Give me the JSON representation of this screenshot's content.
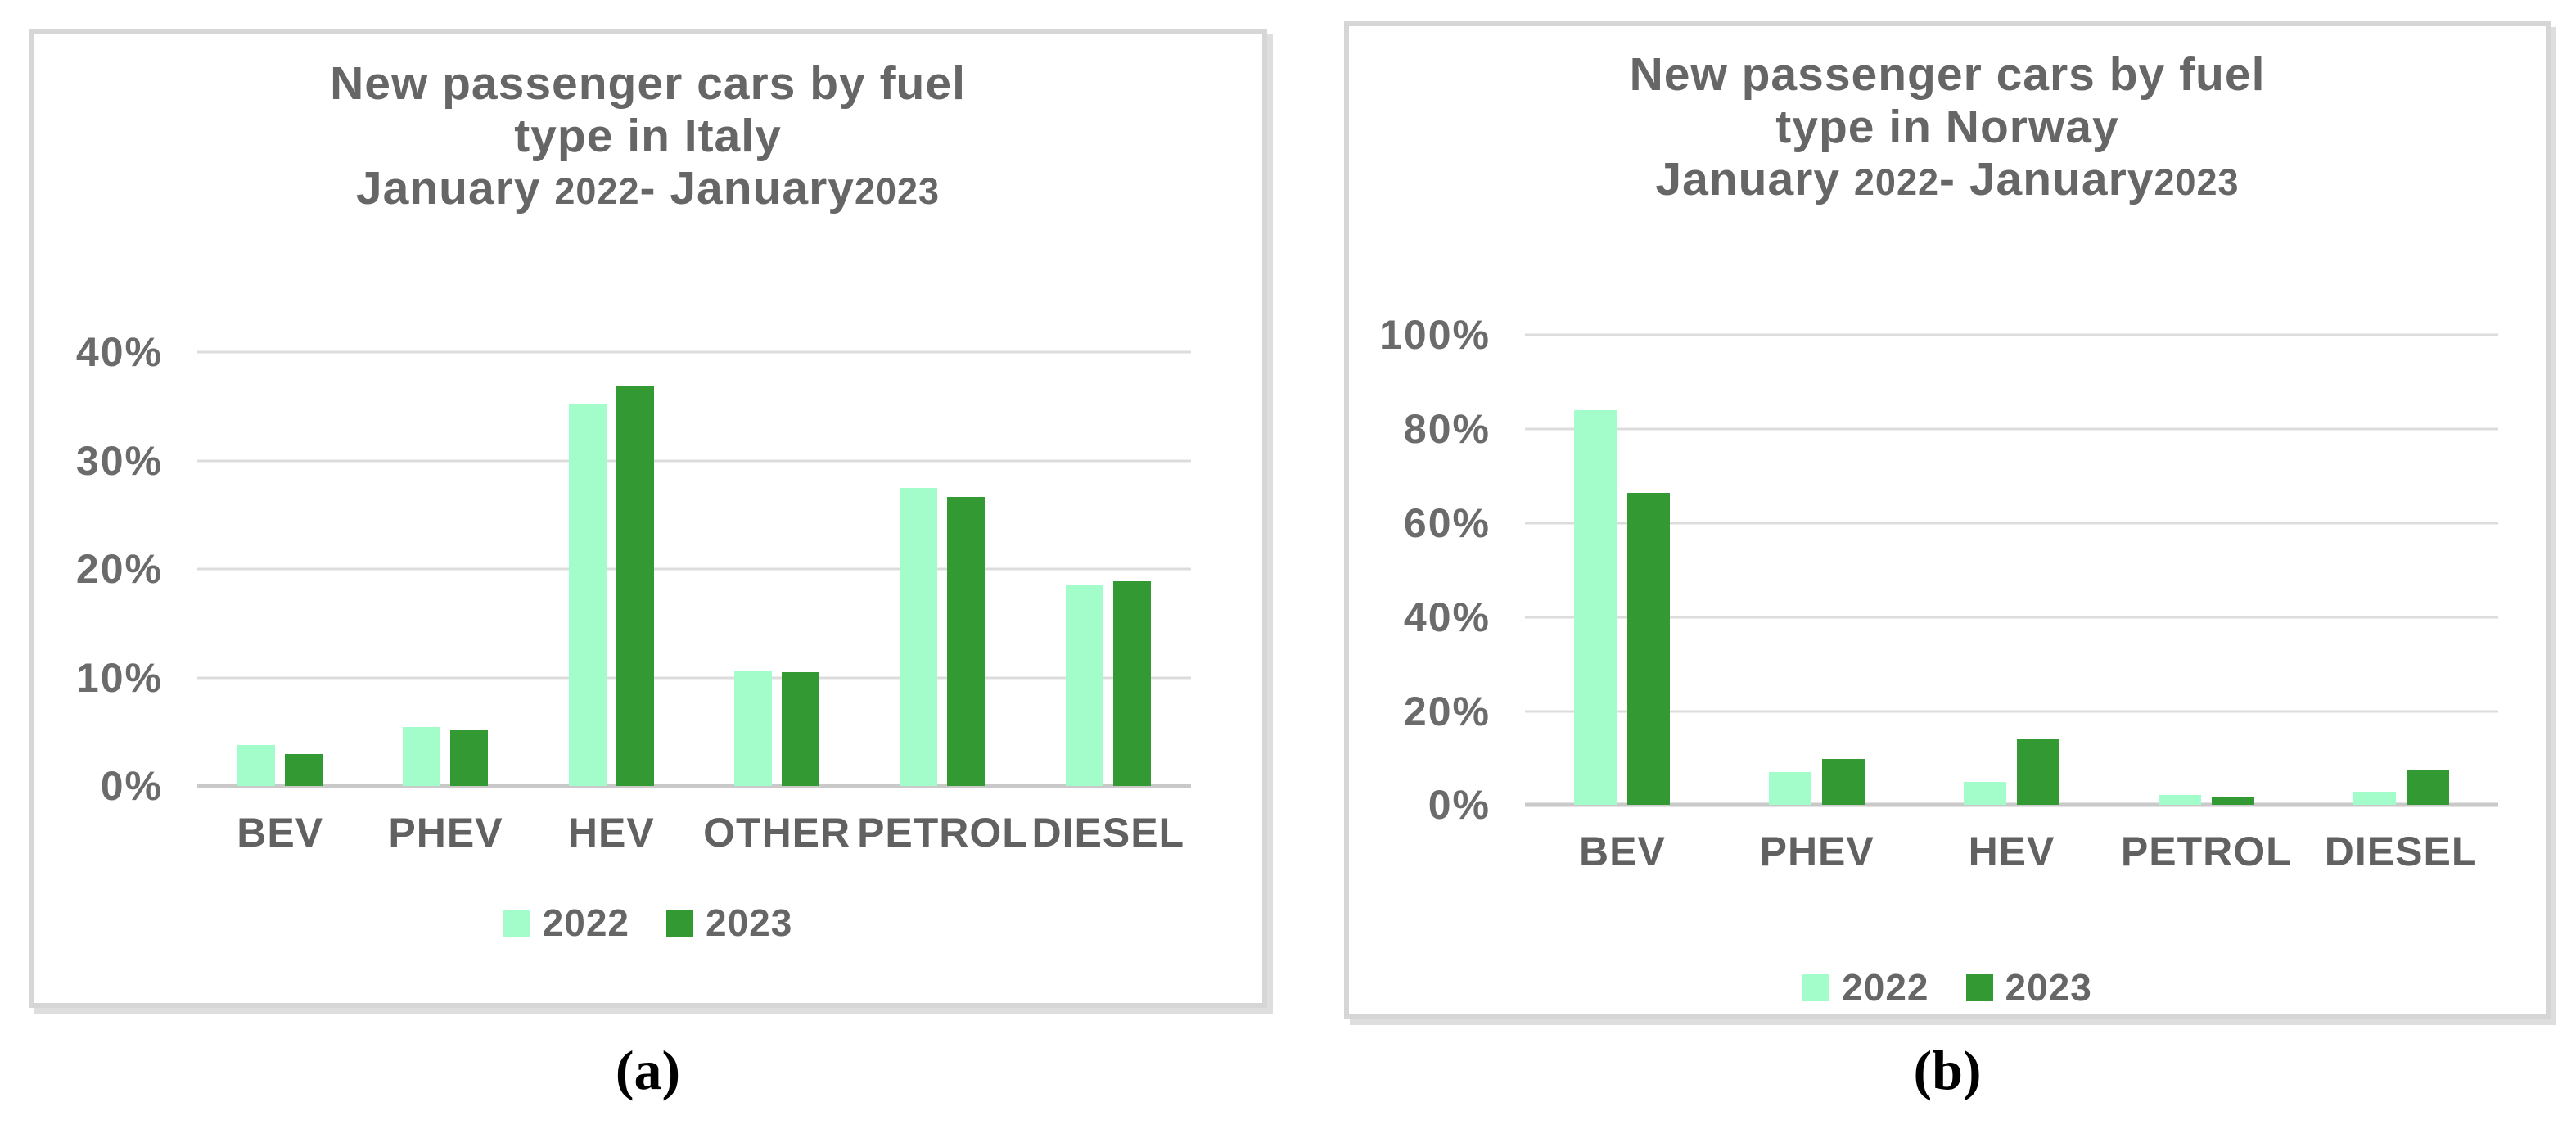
{
  "figure": {
    "caption_a": "(a)",
    "caption_b": "(b)"
  },
  "colors": {
    "series_2022": "#a2fdca",
    "series_2023": "#339933",
    "text_gray": "#666666",
    "gridline": "#dcdcdc",
    "axis_line": "#c9c9c9",
    "panel_border": "#d6d6d6"
  },
  "chart_data": [
    {
      "type": "bar",
      "title_lines": [
        "New passenger cars by fuel",
        "type in Italy"
      ],
      "subtitle_segments": [
        {
          "text": "January ",
          "style": "word"
        },
        {
          "text": "2022",
          "style": "year"
        },
        {
          "text": "- ",
          "style": "word"
        },
        {
          "text": "January",
          "style": "word"
        },
        {
          "text": "2023",
          "style": "year"
        }
      ],
      "categories": [
        "BEV",
        "PHEV",
        "HEV",
        "OTHER",
        "PETROL",
        "DIESEL"
      ],
      "series": [
        {
          "name": "2022",
          "color": "#a2fdca",
          "values": [
            3.8,
            5.5,
            35.3,
            10.7,
            27.5,
            18.5
          ]
        },
        {
          "name": "2023",
          "color": "#339933",
          "values": [
            3.0,
            5.2,
            36.9,
            10.5,
            26.7,
            18.9
          ]
        }
      ],
      "yticks": [
        "0%",
        "10%",
        "20%",
        "30%",
        "40%"
      ],
      "ylim": [
        0,
        40
      ],
      "ytick_step": 10,
      "grid": "horizontal",
      "legend_position": "bottom"
    },
    {
      "type": "bar",
      "title_lines": [
        "New passenger cars by fuel",
        "type in Norway"
      ],
      "subtitle_segments": [
        {
          "text": "January ",
          "style": "word"
        },
        {
          "text": "2022",
          "style": "year"
        },
        {
          "text": "- ",
          "style": "word"
        },
        {
          "text": "January",
          "style": "word"
        },
        {
          "text": "2023",
          "style": "year"
        }
      ],
      "categories": [
        "BEV",
        "PHEV",
        "HEV",
        "PETROL",
        "DIESEL"
      ],
      "series": [
        {
          "name": "2022",
          "color": "#a2fdca",
          "values": [
            84.0,
            7.1,
            5.0,
            2.2,
            2.9
          ]
        },
        {
          "name": "2023",
          "color": "#339933",
          "values": [
            66.5,
            9.9,
            14.1,
            1.9,
            7.4
          ]
        }
      ],
      "yticks": [
        "0%",
        "20%",
        "40%",
        "60%",
        "80%",
        "100%"
      ],
      "ylim": [
        0,
        100
      ],
      "ytick_step": 20,
      "grid": "horizontal",
      "legend_position": "bottom"
    }
  ]
}
